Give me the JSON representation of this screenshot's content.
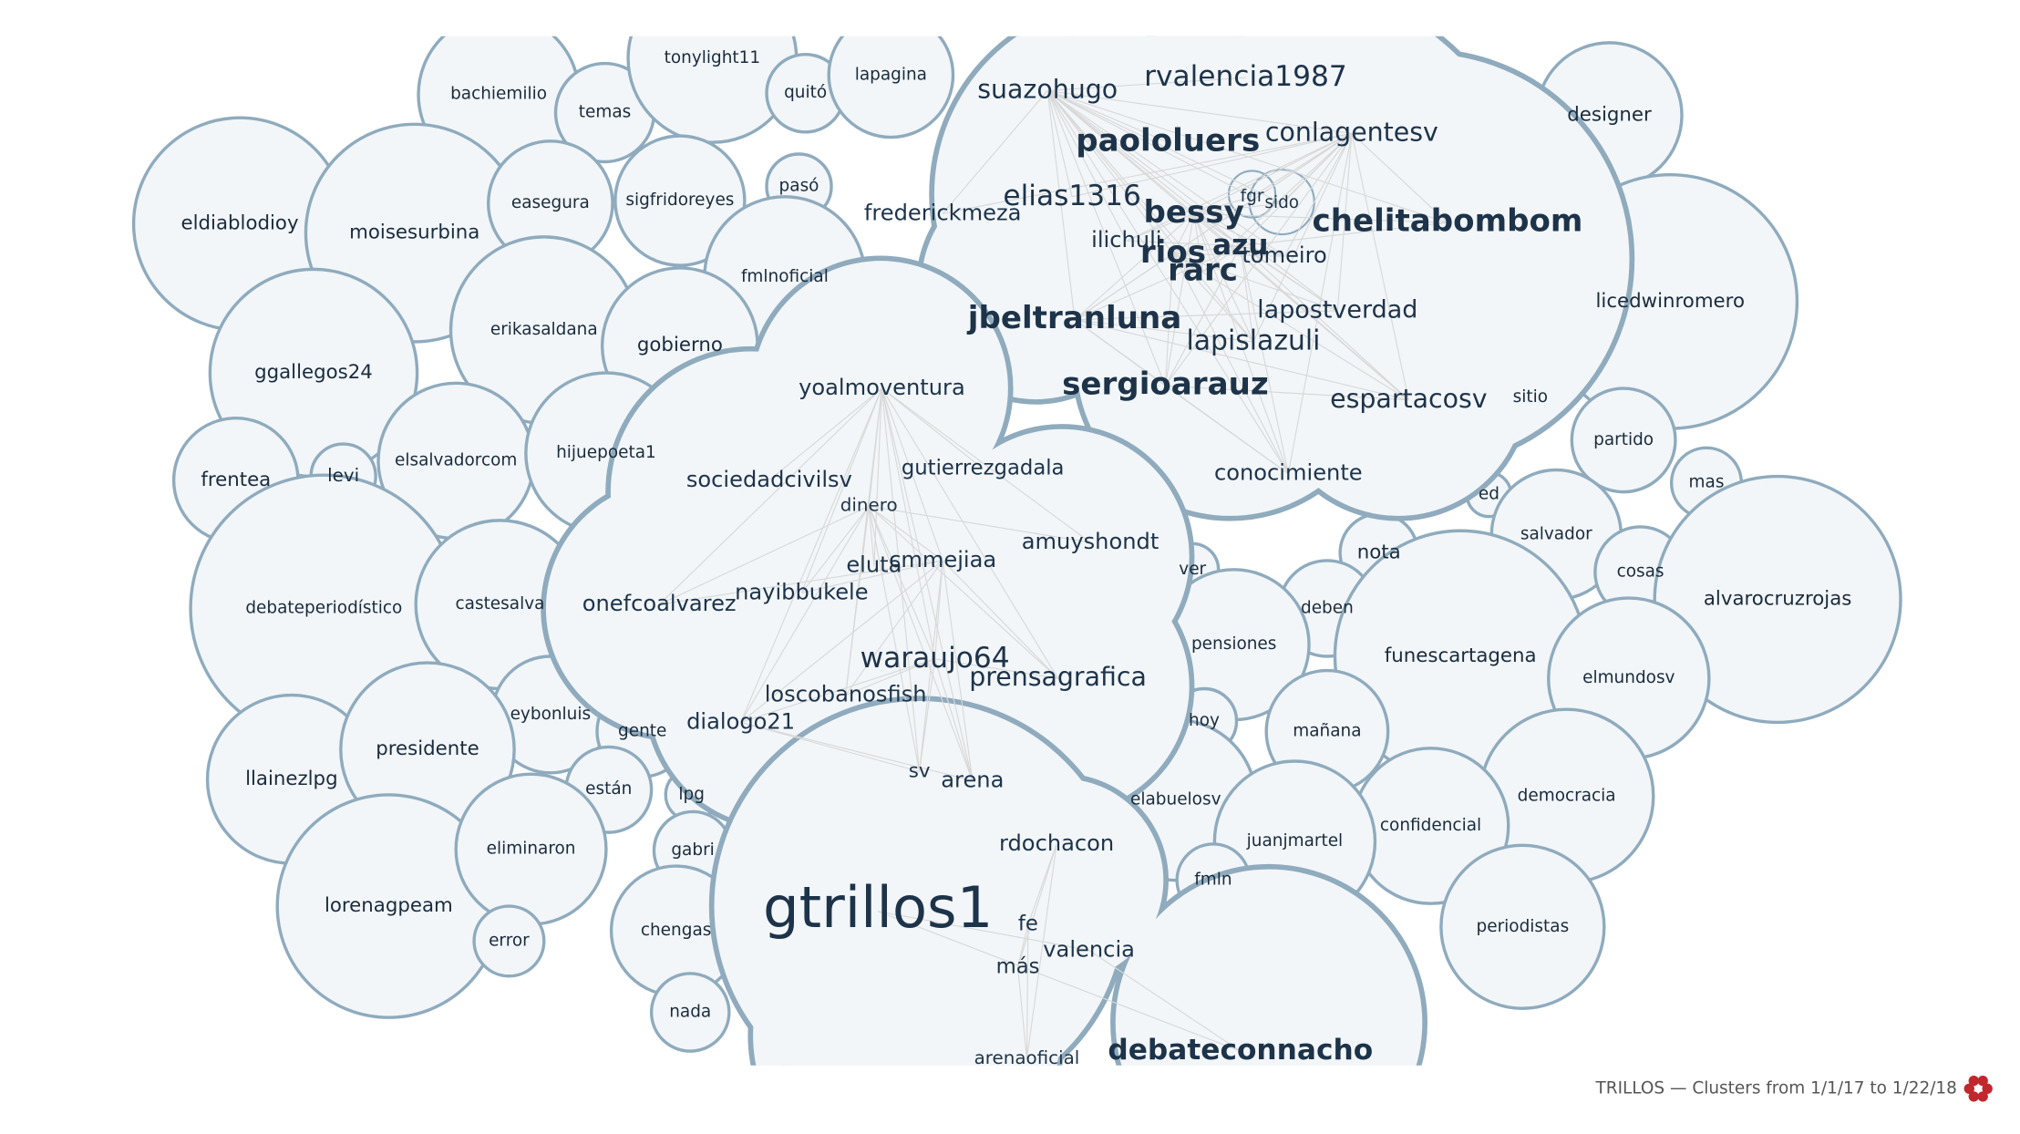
{
  "bubbles": [
    "bachiemilio",
    "temas",
    "tonylight11",
    "quitó",
    "lapagina",
    "eldiablodioy",
    "moisesurbina",
    "easegura",
    "sigfridoreyes",
    "pasó",
    "fmlnoficial",
    "erikasaldana",
    "gobierno",
    "ggallegos24",
    "frentea",
    "levi",
    "elsalvadorcom",
    "hijuepoeta1",
    "debateperiodístico",
    "castesalva",
    "eybonluis",
    "gente",
    "llainezlpg",
    "presidente",
    "están",
    "lpg",
    "lorenagpeam",
    "eliminaron",
    "error",
    "gabri",
    "chengas",
    "nada",
    "designer",
    "licedwinromero",
    "sitio",
    "partido",
    "ed",
    "mas",
    "salvador",
    "nota",
    "cosas",
    "alvarocruzrojas",
    "ver",
    "deben",
    "pensiones",
    "funescartagena",
    "elmundosv",
    "hoy",
    "mañana",
    "democracia",
    "confidencial",
    "elabuelosv",
    "juanjmartel",
    "fmln",
    "periodistas"
  ],
  "clusters": [
    {
      "words": [
        "suazohugo",
        "rvalencia1987",
        "paololuers",
        "conlagentesv",
        "elias1316",
        "frederickmeza",
        "bessy",
        "fgr",
        "sido",
        "azu",
        "ilichuli",
        "chelitabombom",
        "rios",
        "tomeiro",
        "rarc",
        "jbeltranluna",
        "lapostverdad",
        "lapislazuli",
        "sergioarauz",
        "espartacosv",
        "conocimiente"
      ]
    },
    {
      "words": [
        "yoalmoventura",
        "sociedadcivilsv",
        "gutierrezgadala",
        "dinero",
        "amuyshondt",
        "eluta",
        "cmmejiaa",
        "nayibbukele",
        "onefcoalvarez",
        "waraujo64",
        "prensagrafica",
        "loscobanosfish",
        "dialogo21",
        "sv",
        "arena"
      ]
    },
    {
      "words": [
        "rdochacon",
        "gtrillos1",
        "fe",
        "valencia",
        "más",
        "debateconnacho",
        "arenaoficial"
      ]
    }
  ],
  "footer": "TRILLOS — Clusters from 1/1/17 to 1/22/18"
}
